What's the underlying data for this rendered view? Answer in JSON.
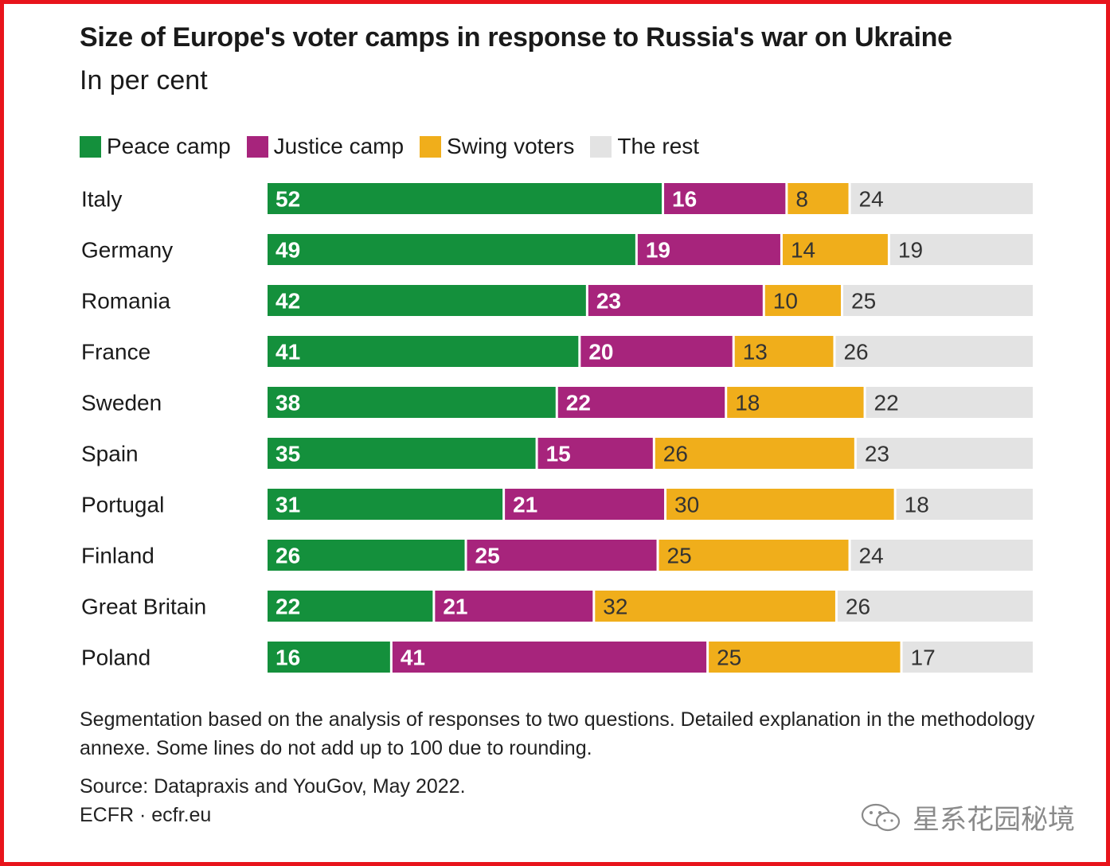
{
  "chart_data": {
    "type": "bar",
    "orientation": "horizontal-stacked",
    "title": "Size of Europe's voter camps in response to Russia's war on Ukraine",
    "subtitle": "In per cent",
    "categories": [
      "Italy",
      "Germany",
      "Romania",
      "France",
      "Sweden",
      "Spain",
      "Portugal",
      "Finland",
      "Great Britain",
      "Poland"
    ],
    "series": [
      {
        "name": "Peace camp",
        "color": "#14903c",
        "label_color": "#ffffff",
        "values": [
          52,
          49,
          42,
          41,
          38,
          35,
          31,
          26,
          22,
          16
        ]
      },
      {
        "name": "Justice camp",
        "color": "#a7247c",
        "label_color": "#ffffff",
        "values": [
          16,
          19,
          23,
          20,
          22,
          15,
          21,
          25,
          21,
          41
        ]
      },
      {
        "name": "Swing voters",
        "color": "#f0ae1b",
        "label_color": "#333333",
        "values": [
          8,
          14,
          10,
          13,
          18,
          26,
          30,
          25,
          32,
          25
        ]
      },
      {
        "name": "The rest",
        "color": "#e3e3e3",
        "label_color": "#333333",
        "values": [
          24,
          19,
          25,
          26,
          22,
          23,
          18,
          24,
          26,
          17
        ]
      }
    ],
    "xlim": [
      0,
      100
    ],
    "legend": "top-left",
    "grid": false
  },
  "notes": {
    "segmentation": "Segmentation based on the analysis of responses to two questions. Detailed explanation in the methodology annexe. Some lines do not add up to 100 due to rounding.",
    "source": "Source: Datapraxis and YouGov, May 2022.",
    "publisher": "ECFR · ecfr.eu"
  },
  "watermark": {
    "text": "星系花园秘境",
    "icon": "wechat-icon"
  },
  "colors": {
    "frame": "#e8141b"
  }
}
